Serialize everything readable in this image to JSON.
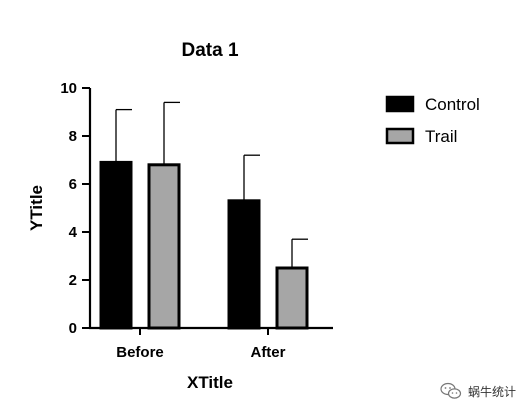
{
  "chart_data": {
    "type": "bar",
    "title": "Data 1",
    "xlabel": "XTitle",
    "ylabel": "YTitle",
    "categories": [
      "Before",
      "After"
    ],
    "series": [
      {
        "name": "Control",
        "values": [
          6.9,
          5.3
        ],
        "errors": [
          2.2,
          1.9
        ],
        "color": "#000000"
      },
      {
        "name": "Trail",
        "values": [
          6.8,
          2.5
        ],
        "errors": [
          2.6,
          1.2
        ],
        "color": "#a6a6a6"
      }
    ],
    "ylim": [
      0,
      10
    ],
    "yticks": [
      0,
      2,
      4,
      6,
      8,
      10
    ],
    "grid": false,
    "legend": "top-right"
  },
  "watermark": {
    "text": "蜗牛统计",
    "icon": "wechat-icon"
  }
}
